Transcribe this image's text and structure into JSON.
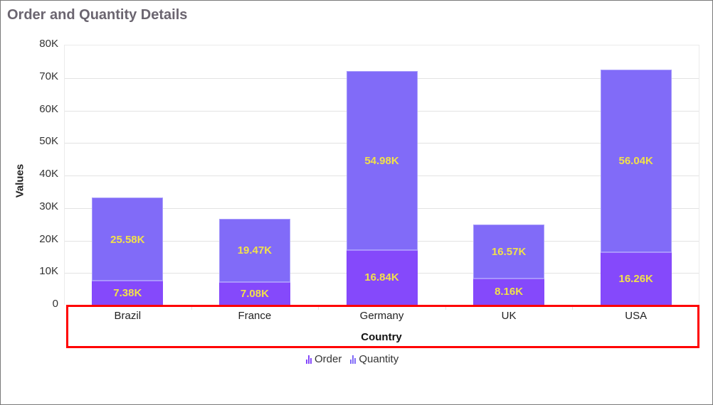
{
  "title": "Order and Quantity Details",
  "colors": {
    "order": "#8549fb",
    "quantity": "#816bf8",
    "data_label": "#f2e14a",
    "highlight": "#ff0000"
  },
  "y_axis": {
    "label": "Values",
    "ticks": [
      "0",
      "10K",
      "20K",
      "30K",
      "40K",
      "50K",
      "60K",
      "70K",
      "80K"
    ]
  },
  "x_axis": {
    "label": "Country",
    "ticks": [
      "Brazil",
      "France",
      "Germany",
      "UK",
      "USA"
    ]
  },
  "legend": [
    {
      "name": "Order",
      "icon": "bar-chart-icon"
    },
    {
      "name": "Quantity",
      "icon": "bar-chart-icon"
    }
  ],
  "bars": [
    {
      "country": "Brazil",
      "order_label": "7.38K",
      "qty_label": "25.58K"
    },
    {
      "country": "France",
      "order_label": "7.08K",
      "qty_label": "19.47K"
    },
    {
      "country": "Germany",
      "order_label": "16.84K",
      "qty_label": "54.98K"
    },
    {
      "country": "UK",
      "order_label": "8.16K",
      "qty_label": "16.57K"
    },
    {
      "country": "USA",
      "order_label": "16.26K",
      "qty_label": "56.04K"
    }
  ],
  "chart_data": {
    "type": "bar",
    "stacked": true,
    "title": "Order and Quantity Details",
    "xlabel": "Country",
    "ylabel": "Values",
    "categories": [
      "Brazil",
      "France",
      "Germany",
      "UK",
      "USA"
    ],
    "series": [
      {
        "name": "Order",
        "values": [
          7380,
          7080,
          16840,
          8160,
          16260
        ]
      },
      {
        "name": "Quantity",
        "values": [
          25580,
          19470,
          54980,
          16570,
          56040
        ]
      }
    ],
    "ylim": [
      0,
      80000
    ],
    "yticks": [
      0,
      10000,
      20000,
      30000,
      40000,
      50000,
      60000,
      70000,
      80000
    ],
    "grid": true,
    "legend_position": "bottom"
  }
}
